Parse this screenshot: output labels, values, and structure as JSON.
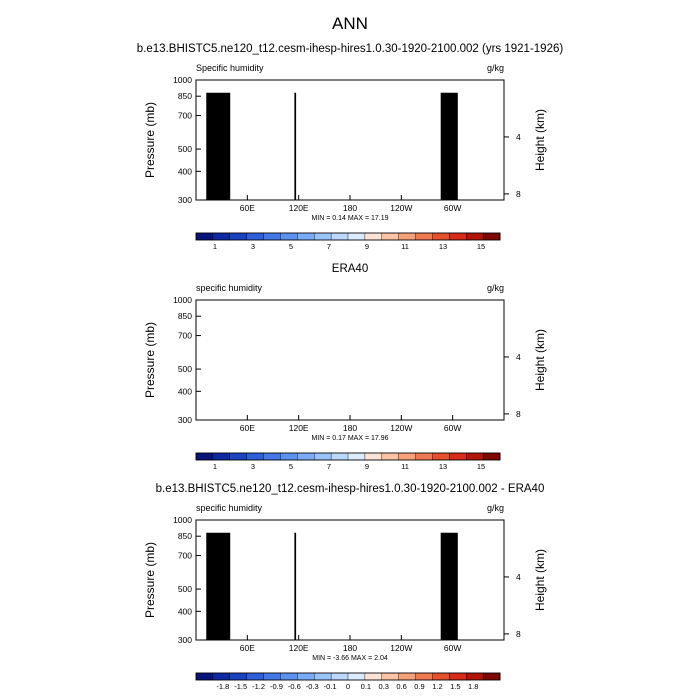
{
  "figure_title": "ANN",
  "colors": {
    "abs_scale": [
      "#08147a",
      "#0e2aa0",
      "#1a43c0",
      "#2c5fd8",
      "#4478e6",
      "#5e92f0",
      "#7aacf6",
      "#98c4fa",
      "#bbd8fc",
      "#dbeafd",
      "#fde3d6",
      "#fbc3a5",
      "#f6a07a",
      "#ef7a52",
      "#e5502f",
      "#d62c18",
      "#b3140a",
      "#7e0800"
    ],
    "diff_scale": [
      "#08147a",
      "#0e2aa0",
      "#1a43c0",
      "#2c5fd8",
      "#4478e6",
      "#5e92f0",
      "#7aacf6",
      "#98c4fa",
      "#bbd8fc",
      "#dbeafd",
      "#fde3d6",
      "#fbc3a5",
      "#f6a07a",
      "#ef7a52",
      "#e5502f",
      "#d62c18",
      "#b3140a",
      "#7e0800"
    ],
    "terrain": "#000000"
  },
  "chart_data": [
    {
      "type": "heatmap",
      "title": "b.e13.BHISTC5.ne120_t12.cesm-ihesp-hires1.0.30-1920-2100.002 (yrs 1921-1926)",
      "left_label": "Specific humidity",
      "right_label": "g/kg",
      "ylabel": "Pressure (mb)",
      "ylabel_right": "Height (km)",
      "y_ticks": [
        "300",
        "400",
        "500",
        "700",
        "850",
        "1000"
      ],
      "y_tick_values": [
        300,
        400,
        500,
        700,
        850,
        1000
      ],
      "y_right_ticks": [
        "8",
        "4"
      ],
      "y_right_values": [
        8,
        4
      ],
      "x_ticks": [
        "60E",
        "120E",
        "180",
        "120W",
        "60W"
      ],
      "x_tick_lons": [
        60,
        120,
        180,
        240,
        300
      ],
      "xlim_lon": [
        0,
        360
      ],
      "ylim_mb": [
        1000,
        300
      ],
      "y_scale": "log",
      "stats_text": "MIN =   0.14  MAX =   17.19",
      "colorbar_labels": [
        "1",
        "3",
        "5",
        "7",
        "9",
        "11",
        "13",
        "15"
      ],
      "colorbar_levels": [
        1,
        3,
        5,
        7,
        9,
        11,
        13,
        15
      ],
      "kind": "abs",
      "terrain": true
    },
    {
      "type": "heatmap",
      "title": "ERA40",
      "left_label": "specific humidity",
      "right_label": "g/kg",
      "ylabel": "Pressure (mb)",
      "ylabel_right": "Height (km)",
      "y_ticks": [
        "300",
        "400",
        "500",
        "700",
        "850",
        "1000"
      ],
      "y_tick_values": [
        300,
        400,
        500,
        700,
        850,
        1000
      ],
      "y_right_ticks": [
        "8",
        "4"
      ],
      "y_right_values": [
        8,
        4
      ],
      "x_ticks": [
        "60E",
        "120E",
        "180",
        "120W",
        "60W"
      ],
      "x_tick_lons": [
        60,
        120,
        180,
        240,
        300
      ],
      "xlim_lon": [
        0,
        360
      ],
      "ylim_mb": [
        1000,
        300
      ],
      "y_scale": "log",
      "stats_text": "MIN =   0.17  MAX =   17.96",
      "colorbar_labels": [
        "1",
        "3",
        "5",
        "7",
        "9",
        "11",
        "13",
        "15"
      ],
      "colorbar_levels": [
        1,
        3,
        5,
        7,
        9,
        11,
        13,
        15
      ],
      "kind": "abs",
      "terrain": false
    },
    {
      "type": "heatmap",
      "title": "b.e13.BHISTC5.ne120_t12.cesm-ihesp-hires1.0.30-1920-2100.002 - ERA40",
      "left_label": "specific humidity",
      "right_label": "g/kg",
      "ylabel": "Pressure (mb)",
      "ylabel_right": "Height (km)",
      "y_ticks": [
        "300",
        "400",
        "500",
        "700",
        "850",
        "1000"
      ],
      "y_tick_values": [
        300,
        400,
        500,
        700,
        850,
        1000
      ],
      "y_right_ticks": [
        "8",
        "4"
      ],
      "y_right_values": [
        8,
        4
      ],
      "x_ticks": [
        "60E",
        "120E",
        "180",
        "120W",
        "60W"
      ],
      "x_tick_lons": [
        60,
        120,
        180,
        240,
        300
      ],
      "xlim_lon": [
        0,
        360
      ],
      "ylim_mb": [
        1000,
        300
      ],
      "y_scale": "log",
      "stats_text": "MIN =   -3.66  MAX =   2.04",
      "colorbar_labels": [
        "-1.8",
        "-1.5",
        "-1.2",
        "-0.9",
        "-0.6",
        "-0.3",
        "-0.1",
        "0",
        "0.1",
        "0.3",
        "0.6",
        "0.9",
        "1.2",
        "1.5",
        "1.8"
      ],
      "colorbar_levels": [
        -1.8,
        -1.5,
        -1.2,
        -0.9,
        -0.6,
        -0.3,
        -0.1,
        0,
        0.1,
        0.3,
        0.6,
        0.9,
        1.2,
        1.5,
        1.8
      ],
      "kind": "diff",
      "terrain": true
    }
  ]
}
